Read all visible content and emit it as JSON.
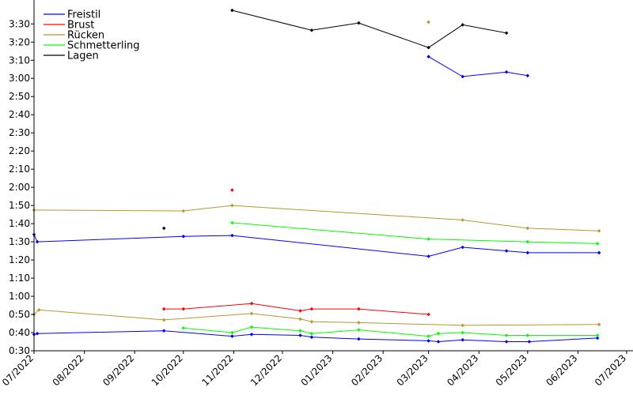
{
  "chart_data": {
    "type": "line",
    "x_axis": {
      "ticks": [
        "07/2022",
        "08/2022",
        "09/2022",
        "10/2022",
        "11/2022",
        "12/2022",
        "01/2023",
        "02/2023",
        "03/2023",
        "04/2023",
        "05/2023",
        "06/2023",
        "07/2023"
      ],
      "range": [
        "2022-07-01",
        "2023-07-01"
      ]
    },
    "y_axis": {
      "ticks": [
        "0:30",
        "0:40",
        "0:50",
        "1:00",
        "1:10",
        "1:20",
        "1:30",
        "1:40",
        "1:50",
        "2:00",
        "2:10",
        "2:20",
        "2:30",
        "2:40",
        "2:50",
        "3:00",
        "3:10",
        "3:20",
        "3:30"
      ],
      "ylim_seconds": [
        30,
        216
      ]
    },
    "grid": false,
    "legend_position": "top-left",
    "legend": [
      {
        "label": "Freistil",
        "color": "#0000ff"
      },
      {
        "label": "Brust",
        "color": "#ff0000"
      },
      {
        "label": "Rücken",
        "color": "#b8962e"
      },
      {
        "label": "Schmetterling",
        "color": "#00ff00"
      },
      {
        "label": "Lagen",
        "color": "#000000"
      }
    ],
    "series": [
      {
        "legend_index": 0,
        "color": "#0000ff",
        "points": [
          [
            "2022-07-01",
            39
          ],
          [
            "2022-07-03",
            39.5
          ],
          [
            "2022-09-19",
            41
          ],
          [
            "2022-10-31",
            38
          ],
          [
            "2022-11-12",
            39
          ],
          [
            "2022-12-12",
            38.5
          ],
          [
            "2022-12-19",
            37.5
          ],
          [
            "2023-01-17",
            36.5
          ],
          [
            "2023-03-01",
            35.5
          ],
          [
            "2023-03-07",
            35
          ],
          [
            "2023-03-22",
            36
          ],
          [
            "2023-04-18",
            35
          ],
          [
            "2023-05-02",
            35
          ],
          [
            "2023-06-13",
            37
          ]
        ]
      },
      {
        "legend_index": 0,
        "color": "#0000ff",
        "points": [
          [
            "2022-07-01",
            94
          ],
          [
            "2022-07-03",
            90
          ],
          [
            "2022-10-01",
            93
          ],
          [
            "2022-10-31",
            93.5
          ],
          [
            "2023-03-01",
            82
          ],
          [
            "2023-03-22",
            87
          ],
          [
            "2023-04-18",
            85
          ],
          [
            "2023-05-01",
            84
          ],
          [
            "2023-06-14",
            84
          ]
        ]
      },
      {
        "legend_index": 0,
        "color": "#0000ff",
        "points": [
          [
            "2023-03-01",
            192
          ],
          [
            "2023-03-22",
            181
          ],
          [
            "2023-04-18",
            183.5
          ],
          [
            "2023-05-01",
            181.5
          ]
        ]
      },
      {
        "legend_index": 1,
        "color": "#ff0000",
        "points": [
          [
            "2022-09-19",
            53
          ],
          [
            "2022-10-01",
            53
          ],
          [
            "2022-11-12",
            56
          ],
          [
            "2022-12-12",
            52
          ],
          [
            "2022-12-19",
            53
          ],
          [
            "2023-01-17",
            53
          ],
          [
            "2023-03-01",
            50
          ]
        ]
      },
      {
        "legend_index": 1,
        "color": "#ff0000",
        "points": [
          [
            "2022-10-31",
            118.5
          ]
        ]
      },
      {
        "legend_index": 2,
        "color": "#b8962e",
        "points": [
          [
            "2022-07-01",
            50
          ],
          [
            "2022-07-04",
            52.5
          ],
          [
            "2022-09-19",
            47
          ],
          [
            "2022-11-12",
            50.5
          ],
          [
            "2022-12-12",
            47.5
          ],
          [
            "2022-12-19",
            46
          ],
          [
            "2023-01-17",
            45.5
          ],
          [
            "2023-03-22",
            44
          ],
          [
            "2023-06-14",
            44.5
          ]
        ]
      },
      {
        "legend_index": 2,
        "color": "#b8962e",
        "points": [
          [
            "2022-07-01",
            107.5
          ],
          [
            "2022-10-01",
            107
          ],
          [
            "2022-10-31",
            110
          ],
          [
            "2023-03-22",
            102
          ],
          [
            "2023-05-01",
            97.5
          ],
          [
            "2023-06-14",
            96
          ]
        ]
      },
      {
        "legend_index": 2,
        "color": "#b8962e",
        "points": [
          [
            "2023-03-01",
            211
          ]
        ]
      },
      {
        "legend_index": 3,
        "color": "#00ff00",
        "points": [
          [
            "2022-10-01",
            42.5
          ],
          [
            "2022-10-31",
            40
          ],
          [
            "2022-11-12",
            43
          ],
          [
            "2022-12-12",
            41
          ],
          [
            "2022-12-19",
            39.5
          ],
          [
            "2023-01-17",
            41.5
          ],
          [
            "2023-03-01",
            38
          ],
          [
            "2023-03-07",
            39.5
          ],
          [
            "2023-03-22",
            40
          ],
          [
            "2023-04-18",
            38.5
          ],
          [
            "2023-05-01",
            38.5
          ],
          [
            "2023-06-13",
            38.5
          ]
        ]
      },
      {
        "legend_index": 3,
        "color": "#00ff00",
        "points": [
          [
            "2022-10-31",
            100.5
          ],
          [
            "2023-03-01",
            91.5
          ],
          [
            "2023-05-01",
            90
          ],
          [
            "2023-06-13",
            89
          ]
        ]
      },
      {
        "legend_index": 4,
        "color": "#000000",
        "points": [
          [
            "2022-09-19",
            97.5
          ]
        ]
      },
      {
        "legend_index": 4,
        "color": "#000000",
        "points": [
          [
            "2022-10-31",
            217.5
          ],
          [
            "2022-12-19",
            206.5
          ],
          [
            "2023-01-17",
            210.5
          ],
          [
            "2023-03-01",
            197
          ],
          [
            "2023-03-22",
            209.5
          ],
          [
            "2023-04-18",
            205
          ]
        ]
      }
    ]
  }
}
